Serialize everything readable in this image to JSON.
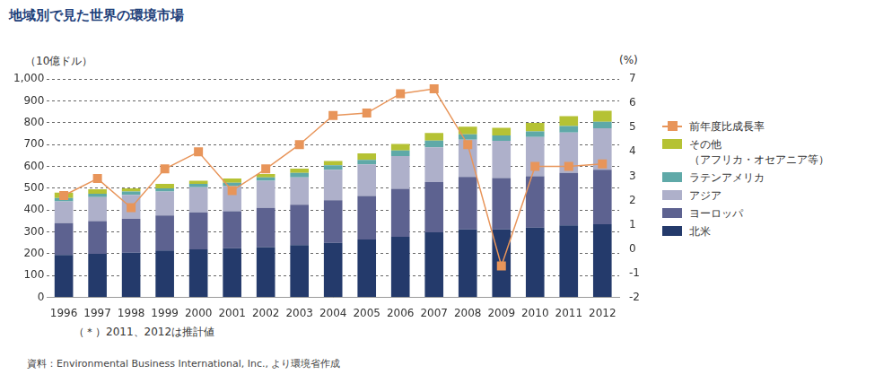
{
  "chart_data": {
    "type": "bar",
    "title": "地域別で見た世界の環境市場",
    "ylabel": "（10億ドル）",
    "y2label": "(%)",
    "annotations": [
      "（＊）2011、2012は推計値",
      "資料：Environmental Business International, Inc., より環境省作成"
    ],
    "stacked": true,
    "grid": true,
    "legend": "right",
    "categories": [
      "1996",
      "1997",
      "1998",
      "1999",
      "2000",
      "2001",
      "2002",
      "2003",
      "2004",
      "2005",
      "2006",
      "2007",
      "2008",
      "2009",
      "2010",
      "2011",
      "2012"
    ],
    "series": [
      {
        "name": "北米",
        "color": "#243a6b",
        "values": [
          195,
          200,
          205,
          215,
          220,
          225,
          230,
          240,
          250,
          265,
          278,
          298,
          312,
          312,
          320,
          330,
          335
        ]
      },
      {
        "name": "ヨーロッパ",
        "color": "#5d6290",
        "values": [
          145,
          150,
          155,
          160,
          170,
          170,
          180,
          185,
          195,
          200,
          220,
          230,
          240,
          235,
          235,
          240,
          250
        ]
      },
      {
        "name": "アジア",
        "color": "#aeb0ca",
        "values": [
          100,
          110,
          110,
          110,
          115,
          115,
          125,
          125,
          140,
          145,
          150,
          160,
          170,
          170,
          180,
          185,
          190
        ]
      },
      {
        "name": "ラテンアメリカ",
        "color": "#5fa9a8",
        "values": [
          15,
          15,
          15,
          15,
          15,
          15,
          15,
          20,
          20,
          20,
          25,
          30,
          25,
          25,
          25,
          30,
          30
        ]
      },
      {
        "name": "その他\n（アフリカ・オセアニア等）",
        "color": "#b5c234",
        "values": [
          25,
          20,
          15,
          20,
          15,
          20,
          15,
          20,
          20,
          30,
          30,
          35,
          35,
          35,
          40,
          45,
          50
        ]
      },
      {
        "name": "前年度比成長率",
        "type": "line",
        "axis": "y2",
        "marker": "square",
        "color": "#e8955a",
        "values": [
          2.2,
          2.9,
          1.7,
          3.3,
          4.0,
          2.4,
          3.3,
          4.3,
          5.5,
          5.6,
          6.4,
          6.6,
          4.3,
          -0.7,
          3.4,
          3.4,
          3.5
        ]
      }
    ],
    "ylim": [
      0,
      1000
    ],
    "yticks": [
      0,
      100,
      200,
      300,
      400,
      500,
      600,
      700,
      800,
      900,
      {
        "value": 1000,
        "label": "1,000"
      }
    ],
    "y2lim": [
      -2,
      7
    ],
    "y2ticks": [
      -2,
      -1,
      0,
      1,
      2,
      3,
      4,
      5,
      6,
      7
    ]
  }
}
